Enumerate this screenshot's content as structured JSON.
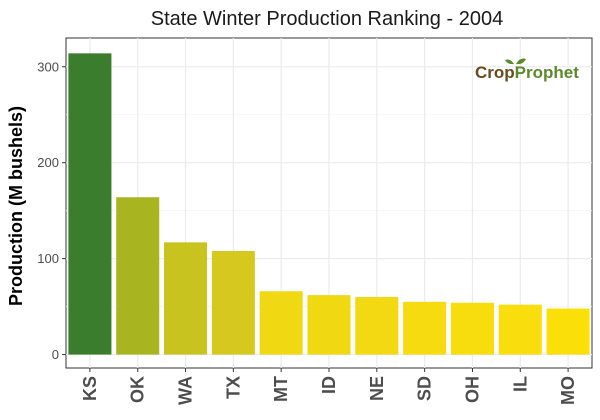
{
  "chart_data": {
    "type": "bar",
    "title": "State Winter  Production Ranking - 2004",
    "xlabel": "",
    "ylabel": "Production (M bushels)",
    "categories": [
      "KS",
      "OK",
      "WA",
      "TX",
      "MT",
      "ID",
      "NE",
      "SD",
      "OH",
      "IL",
      "MO"
    ],
    "values": [
      314,
      164,
      117,
      108,
      66,
      62,
      60,
      55,
      54,
      52,
      48
    ],
    "ylim": [
      -14,
      330
    ],
    "yticks": [
      0,
      100,
      200,
      300
    ],
    "bar_colors": [
      "#3a7d2c",
      "#a8b520",
      "#c8c31e",
      "#d6c81f",
      "#f0d813",
      "#f0d813",
      "#f2d912",
      "#f5db10",
      "#f7dc0e",
      "#f9dd0c",
      "#fbdf08"
    ],
    "grid": true,
    "legend": "none"
  },
  "logo": {
    "part1": "Crop",
    "part2": "Prophet",
    "color1": "#6b4a1e",
    "color2": "#5a8a2a",
    "icon": "leaf-sprout-icon"
  }
}
